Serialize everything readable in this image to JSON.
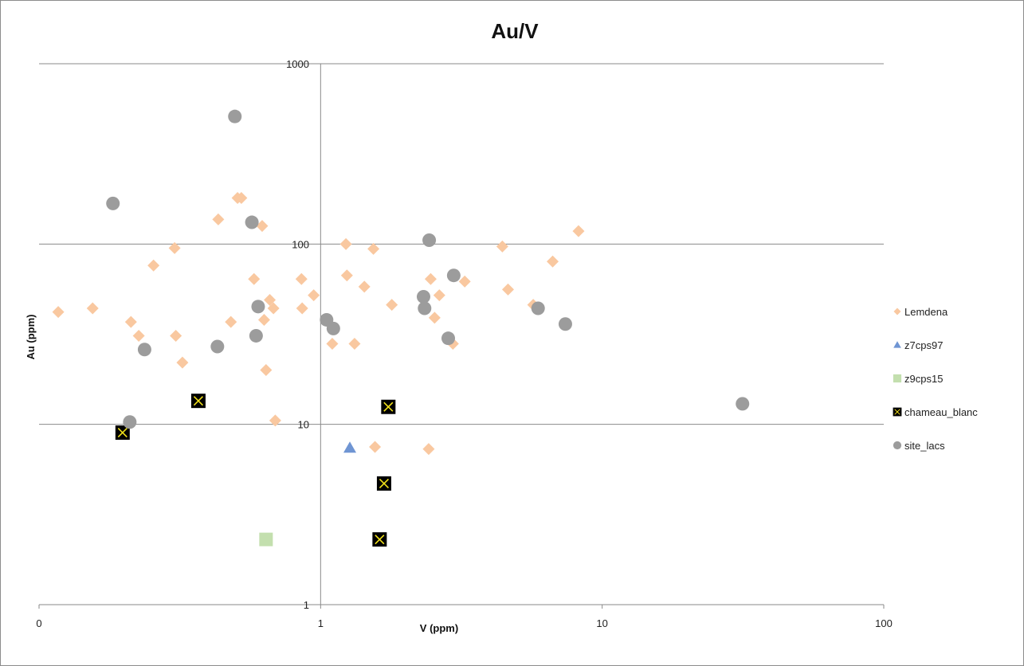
{
  "chart_data": {
    "type": "scatter",
    "title": "Au/V",
    "xlabel": "V (ppm)",
    "ylabel": "Au (ppm)",
    "x_scale": "log",
    "y_scale": "log",
    "xlim": [
      0.1,
      100
    ],
    "ylim": [
      1,
      1000
    ],
    "x_tick_labels": [
      "0",
      "1",
      "10",
      "100"
    ],
    "y_tick_labels": [
      "1",
      "10",
      "100",
      "1000"
    ],
    "grid": "horizontal major gridlines",
    "legend_position": "right",
    "series": [
      {
        "name": "Lemdena",
        "marker": "diamond",
        "color": "#f9c8a0",
        "points": [
          [
            0.117,
            42
          ],
          [
            0.155,
            44
          ],
          [
            0.212,
            37
          ],
          [
            0.226,
            31
          ],
          [
            0.255,
            76
          ],
          [
            0.303,
            95
          ],
          [
            0.306,
            31
          ],
          [
            0.323,
            22
          ],
          [
            0.433,
            137
          ],
          [
            0.48,
            37
          ],
          [
            0.507,
            180
          ],
          [
            0.523,
            180
          ],
          [
            0.58,
            64
          ],
          [
            0.62,
            126
          ],
          [
            0.63,
            38
          ],
          [
            0.64,
            20
          ],
          [
            0.66,
            49
          ],
          [
            0.68,
            44
          ],
          [
            0.69,
            10.5
          ],
          [
            0.855,
            64
          ],
          [
            0.86,
            44
          ],
          [
            0.945,
            52
          ],
          [
            1.1,
            28
          ],
          [
            1.23,
            100
          ],
          [
            1.24,
            67
          ],
          [
            1.32,
            28
          ],
          [
            1.43,
            58
          ],
          [
            1.54,
            94
          ],
          [
            1.56,
            7.5
          ],
          [
            1.79,
            46
          ],
          [
            2.42,
            7.3
          ],
          [
            2.46,
            64
          ],
          [
            2.54,
            39
          ],
          [
            2.64,
            52
          ],
          [
            2.95,
            28
          ],
          [
            3.25,
            62
          ],
          [
            4.42,
            97
          ],
          [
            4.63,
            56
          ],
          [
            5.69,
            46
          ],
          [
            6.67,
            80
          ],
          [
            8.24,
            118
          ]
        ]
      },
      {
        "name": "z7cps97",
        "marker": "triangle",
        "color": "#6f95d3",
        "points": [
          [
            1.27,
            7.4
          ]
        ]
      },
      {
        "name": "z9cps15",
        "marker": "square",
        "color": "#c3dfae",
        "points": [
          [
            0.64,
            2.3
          ]
        ]
      },
      {
        "name": "chameau_blanc",
        "marker": "crossed-square",
        "color": "#000000",
        "accent": "#f2e11b",
        "points": [
          [
            0.198,
            9.0
          ],
          [
            0.368,
            13.5
          ],
          [
            1.74,
            12.5
          ],
          [
            1.68,
            4.7
          ],
          [
            1.62,
            2.3
          ]
        ]
      },
      {
        "name": "site_lacs",
        "marker": "circle",
        "color": "#9c9c9c",
        "points": [
          [
            0.183,
            168
          ],
          [
            0.21,
            10.3
          ],
          [
            0.237,
            26
          ],
          [
            0.43,
            27
          ],
          [
            0.496,
            510
          ],
          [
            0.57,
            132
          ],
          [
            0.59,
            31
          ],
          [
            0.6,
            45
          ],
          [
            1.05,
            38
          ],
          [
            1.11,
            34
          ],
          [
            2.32,
            51
          ],
          [
            2.34,
            44
          ],
          [
            2.43,
            105
          ],
          [
            2.84,
            30
          ],
          [
            2.97,
            67
          ],
          [
            5.92,
            44
          ],
          [
            7.4,
            36
          ],
          [
            31.5,
            13
          ]
        ]
      }
    ]
  }
}
